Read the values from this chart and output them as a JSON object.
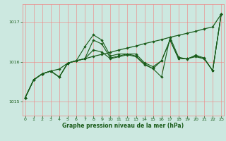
{
  "xlabel": "Graphe pression niveau de la mer (hPa)",
  "x_ticks": [
    0,
    1,
    2,
    3,
    4,
    5,
    6,
    7,
    8,
    9,
    10,
    11,
    12,
    13,
    14,
    15,
    16,
    17,
    18,
    19,
    20,
    21,
    22,
    23
  ],
  "y_ticks": [
    1015,
    1016,
    1017
  ],
  "ylim": [
    1014.65,
    1017.45
  ],
  "xlim": [
    -0.3,
    23.3
  ],
  "bg_color": "#cce8e0",
  "grid_color": "#f08080",
  "line_color": "#1a5c1a",
  "line1": [
    1015.1,
    1015.55,
    1015.7,
    1015.77,
    1015.82,
    1015.97,
    1016.03,
    1016.08,
    1016.14,
    1016.19,
    1016.24,
    1016.3,
    1016.35,
    1016.4,
    1016.46,
    1016.51,
    1016.56,
    1016.62,
    1016.67,
    1016.72,
    1016.77,
    1016.83,
    1016.88,
    1017.2
  ],
  "line2": [
    1015.1,
    1015.55,
    1015.7,
    1015.77,
    1015.62,
    1015.97,
    1016.03,
    1016.38,
    1016.68,
    1016.55,
    1016.15,
    1016.2,
    1016.2,
    1016.15,
    1015.95,
    1015.83,
    1015.62,
    1016.62,
    1016.12,
    1016.07,
    1016.17,
    1016.1,
    1015.78,
    1017.2
  ],
  "line3": [
    1015.1,
    1015.55,
    1015.7,
    1015.77,
    1015.62,
    1015.97,
    1016.03,
    1016.08,
    1016.55,
    1016.45,
    1016.1,
    1016.15,
    1016.2,
    1016.2,
    1015.98,
    1015.88,
    1016.03,
    1016.55,
    1016.08,
    1016.08,
    1016.15,
    1016.08,
    1015.78,
    1017.2
  ],
  "line4": [
    1015.1,
    1015.55,
    1015.7,
    1015.77,
    1015.62,
    1015.97,
    1016.03,
    1016.08,
    1016.3,
    1016.25,
    1016.08,
    1016.13,
    1016.18,
    1016.13,
    1015.93,
    1015.83,
    1016.03,
    1016.55,
    1016.08,
    1016.08,
    1016.13,
    1016.08,
    1015.78,
    1017.2
  ]
}
